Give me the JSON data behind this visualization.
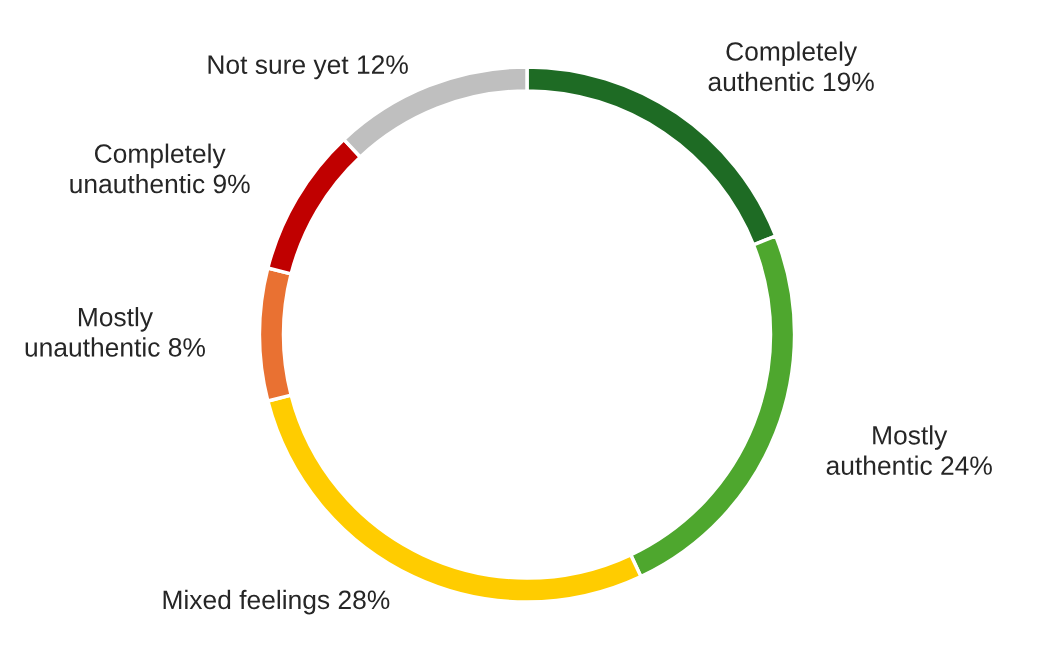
{
  "chart_data": {
    "type": "donut",
    "categories": [
      "Completely authentic",
      "Mostly authentic",
      "Mixed feelings",
      "Mostly unauthentic",
      "Completely unauthentic",
      "Not sure yet"
    ],
    "values": [
      19,
      24,
      28,
      8,
      9,
      12
    ],
    "value_labels": [
      "19%",
      "24%",
      "28%",
      "8%",
      "9%",
      "12%"
    ],
    "colors": [
      "#1e6b24",
      "#4ea72e",
      "#ffcc00",
      "#e97132",
      "#c00000",
      "#bfbfbf"
    ],
    "legend": false
  }
}
